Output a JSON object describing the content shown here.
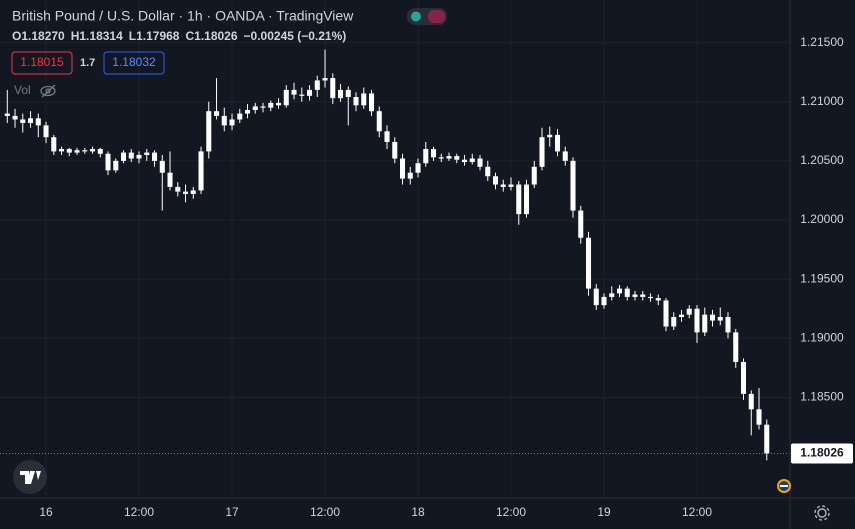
{
  "header": {
    "title": "British Pound / U.S. Dollar · 1h · OANDA · TradingView",
    "ohlc": [
      "O1.18270",
      "H1.18314",
      "L1.17968",
      "C1.18026",
      "−0.00245 (−0.21%)"
    ],
    "sell_price": "1.18015",
    "spread": "1.7",
    "buy_price": "1.18032",
    "volume_label": "Vol"
  },
  "chart_data": {
    "type": "candlestick",
    "color": "#ffffff",
    "grid": true,
    "x": [
      -5,
      -4,
      -3,
      -2,
      -1,
      0,
      1,
      2,
      3,
      4,
      5,
      6,
      7,
      8,
      9,
      10,
      11,
      12,
      13,
      14,
      15,
      16,
      17,
      18,
      19,
      20,
      21,
      22,
      23,
      24,
      25,
      26,
      27,
      28,
      29,
      30,
      31,
      32,
      33,
      34,
      35,
      36,
      37,
      38,
      39,
      40,
      41,
      42,
      43,
      44,
      45,
      46,
      47,
      48,
      49,
      50,
      51,
      52,
      53,
      54,
      55,
      56,
      57,
      58,
      59,
      60,
      61,
      62,
      63,
      64,
      65,
      66,
      67,
      68,
      69,
      70,
      71,
      72,
      73,
      74,
      75,
      76,
      77,
      78,
      79,
      80,
      81,
      82,
      83,
      84,
      85,
      86,
      87,
      88,
      89,
      90,
      91,
      92,
      93
    ],
    "open": [
      1.209,
      1.2088,
      1.2085,
      1.2082,
      1.2086,
      1.208,
      1.207,
      1.2058,
      1.206,
      1.2057,
      1.2059,
      1.2058,
      1.206,
      1.2056,
      1.2042,
      1.205,
      1.2057,
      1.2052,
      1.2055,
      1.2057,
      1.205,
      1.204,
      1.2028,
      1.2024,
      1.2022,
      1.2025,
      1.2058,
      1.2092,
      1.2088,
      1.208,
      1.2085,
      1.209,
      1.2093,
      1.2096,
      1.2095,
      1.2099,
      1.2097,
      1.211,
      1.2106,
      1.2105,
      1.211,
      1.2118,
      1.212,
      1.2103,
      1.211,
      1.2104,
      1.2097,
      1.2107,
      1.2092,
      1.2075,
      1.2066,
      1.2052,
      1.2035,
      1.204,
      1.2048,
      1.206,
      1.2053,
      1.2052,
      1.2054,
      1.2051,
      1.2049,
      1.2052,
      1.2045,
      1.2037,
      1.203,
      1.2028,
      1.203,
      1.2005,
      1.203,
      1.2045,
      1.207,
      1.2072,
      1.2058,
      1.205,
      1.2008,
      1.1985,
      1.1942,
      1.1928,
      1.1935,
      1.1938,
      1.1942,
      1.1935,
      1.1937,
      1.1935,
      1.1934,
      1.1932,
      1.191,
      1.1918,
      1.192,
      1.1925,
      1.1905,
      1.192,
      1.1915,
      1.1918,
      1.1905,
      1.188,
      1.1853,
      1.184,
      1.1827
    ],
    "high": [
      1.211,
      1.2094,
      1.209,
      1.2092,
      1.209,
      1.2083,
      1.2072,
      1.2062,
      1.2061,
      1.2061,
      1.2061,
      1.2062,
      1.2061,
      1.2058,
      1.2052,
      1.2059,
      1.206,
      1.2058,
      1.206,
      1.2059,
      1.2055,
      1.2058,
      1.2032,
      1.203,
      1.2028,
      1.2062,
      1.21,
      1.212,
      1.2095,
      1.209,
      1.2094,
      1.2098,
      1.2099,
      1.2099,
      1.2101,
      1.2103,
      1.2114,
      1.2116,
      1.2112,
      1.2114,
      1.2122,
      1.2144,
      1.2124,
      1.2115,
      1.2113,
      1.2108,
      1.2112,
      1.211,
      1.2096,
      1.208,
      1.207,
      1.2056,
      1.2045,
      1.2052,
      1.2066,
      1.2062,
      1.2056,
      1.2057,
      1.2056,
      1.2055,
      1.2056,
      1.2055,
      1.205,
      1.204,
      1.2034,
      1.2036,
      1.2033,
      1.2034,
      1.205,
      1.2078,
      1.2079,
      1.2077,
      1.2062,
      1.2053,
      1.2012,
      1.199,
      1.1946,
      1.1938,
      1.1944,
      1.1945,
      1.1944,
      1.194,
      1.194,
      1.1938,
      1.1937,
      1.1934,
      1.1922,
      1.1924,
      1.1928,
      1.1928,
      1.1926,
      1.1924,
      1.1926,
      1.1922,
      1.1908,
      1.1883,
      1.1856,
      1.1858,
      1.18314
    ],
    "low": [
      1.2082,
      1.2078,
      1.2074,
      1.2078,
      1.207,
      1.2065,
      1.2055,
      1.2055,
      1.2054,
      1.2055,
      1.2056,
      1.2056,
      1.2053,
      1.2038,
      1.204,
      1.2048,
      1.2049,
      1.2048,
      1.205,
      1.2045,
      1.2008,
      1.2025,
      1.202,
      1.2015,
      1.2018,
      1.2022,
      1.2052,
      1.2085,
      1.2075,
      1.2076,
      1.2082,
      1.2086,
      1.209,
      1.2091,
      1.2092,
      1.2094,
      1.2095,
      1.2102,
      1.21,
      1.2101,
      1.2104,
      1.2112,
      1.2098,
      1.21,
      1.208,
      1.2092,
      1.2094,
      1.2088,
      1.207,
      1.206,
      1.2048,
      1.203,
      1.203,
      1.2036,
      1.2045,
      1.205,
      1.2049,
      1.205,
      1.2048,
      1.2046,
      1.2047,
      1.2042,
      1.2033,
      1.2026,
      1.2024,
      1.2025,
      1.1996,
      1.2002,
      1.2027,
      1.2042,
      1.2062,
      1.2054,
      1.2046,
      1.2002,
      1.198,
      1.1936,
      1.1924,
      1.1925,
      1.1932,
      1.1935,
      1.1932,
      1.1932,
      1.1932,
      1.1931,
      1.1928,
      1.1906,
      1.1907,
      1.1914,
      1.1917,
      1.1896,
      1.1902,
      1.191,
      1.1911,
      1.19,
      1.1875,
      1.1848,
      1.1818,
      1.1823,
      1.17968
    ],
    "close": [
      1.2088,
      1.2085,
      1.2082,
      1.2086,
      1.208,
      1.207,
      1.2058,
      1.206,
      1.2057,
      1.2059,
      1.2058,
      1.206,
      1.2056,
      1.2042,
      1.205,
      1.2057,
      1.2052,
      1.2055,
      1.2057,
      1.205,
      1.204,
      1.2028,
      1.2024,
      1.2022,
      1.2025,
      1.2058,
      1.2092,
      1.2088,
      1.208,
      1.2085,
      1.209,
      1.2093,
      1.2096,
      1.2095,
      1.2099,
      1.2097,
      1.211,
      1.2106,
      1.2105,
      1.211,
      1.2118,
      1.212,
      1.2103,
      1.211,
      1.2104,
      1.2097,
      1.2107,
      1.2092,
      1.2075,
      1.2066,
      1.2052,
      1.2035,
      1.204,
      1.2048,
      1.206,
      1.2053,
      1.2052,
      1.2054,
      1.2051,
      1.2049,
      1.2052,
      1.2045,
      1.2037,
      1.203,
      1.2028,
      1.203,
      1.2005,
      1.203,
      1.2045,
      1.207,
      1.2072,
      1.2058,
      1.205,
      1.2008,
      1.1985,
      1.1942,
      1.1928,
      1.1935,
      1.1938,
      1.1942,
      1.1935,
      1.1937,
      1.1935,
      1.1934,
      1.1932,
      1.191,
      1.1918,
      1.192,
      1.1925,
      1.1905,
      1.192,
      1.1915,
      1.1918,
      1.1905,
      1.188,
      1.1853,
      1.184,
      1.1827,
      1.18026
    ],
    "xlim": [
      -5.94,
      96
    ],
    "xticks": [
      {
        "value": 0,
        "label": "16"
      },
      {
        "value": 12,
        "label": "12:00"
      },
      {
        "value": 24,
        "label": "17"
      },
      {
        "value": 36,
        "label": "12:00"
      },
      {
        "value": 48,
        "label": "18"
      },
      {
        "value": 60,
        "label": "12:00"
      },
      {
        "value": 72,
        "label": "19"
      },
      {
        "value": 84,
        "label": "12:00"
      }
    ],
    "ylim": [
      1.1765,
      1.2186
    ],
    "yticks": [
      {
        "value": 1.215,
        "label": "1.21500"
      },
      {
        "value": 1.21,
        "label": "1.21000"
      },
      {
        "value": 1.205,
        "label": "1.20500"
      },
      {
        "value": 1.2,
        "label": "1.20000"
      },
      {
        "value": 1.195,
        "label": "1.19500"
      },
      {
        "value": 1.19,
        "label": "1.19000"
      },
      {
        "value": 1.185,
        "label": "1.18500"
      }
    ]
  }
}
